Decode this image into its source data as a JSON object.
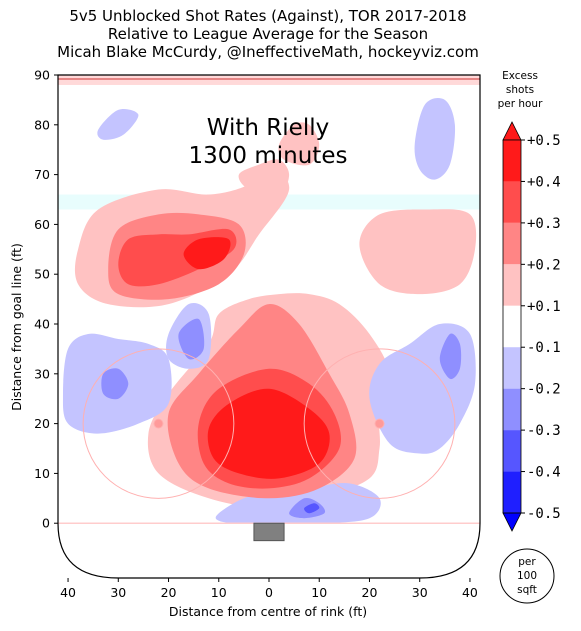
{
  "chart_data": {
    "type": "heatmap",
    "title_lines": [
      "5v5 Unblocked Shot Rates (Against), TOR 2017-2018",
      "Relative to League Average for the Season",
      "Micah Blake McCurdy, @IneffectiveMath, hockeyviz.com"
    ],
    "annotation_lines": [
      "With Rielly",
      "1300 minutes"
    ],
    "xlabel": "Distance from centre of rink (ft)",
    "ylabel": "Distance from goal line (ft)",
    "x_ticks": [
      "40",
      "30",
      "20",
      "10",
      "0",
      "10",
      "20",
      "30",
      "40"
    ],
    "y_ticks": [
      "90",
      "80",
      "70",
      "60",
      "50",
      "40",
      "30",
      "20",
      "10",
      "0"
    ],
    "xlim": [
      -42,
      42
    ],
    "ylim": [
      -11,
      90
    ],
    "colorbar": {
      "title_lines": [
        "Excess",
        "shots",
        "per hour"
      ],
      "tick_labels": [
        "+0.5",
        "+0.4",
        "+0.3",
        "+0.2",
        "+0.1",
        "-0.1",
        "-0.2",
        "-0.3",
        "-0.4",
        "-0.5"
      ],
      "levels": [
        {
          "from": 0.4,
          "to": 0.5,
          "color": "#ff1a1a"
        },
        {
          "from": 0.3,
          "to": 0.4,
          "color": "#ff4d4d"
        },
        {
          "from": 0.2,
          "to": 0.3,
          "color": "#ff8585"
        },
        {
          "from": 0.1,
          "to": 0.2,
          "color": "#ffc2c2"
        },
        {
          "from": -0.1,
          "to": 0.1,
          "color": "#ffffff"
        },
        {
          "from": -0.2,
          "to": -0.1,
          "color": "#c4c4ff"
        },
        {
          "from": -0.3,
          "to": -0.2,
          "color": "#8f8fff"
        },
        {
          "from": -0.4,
          "to": -0.3,
          "color": "#5656ff"
        },
        {
          "from": -0.5,
          "to": -0.4,
          "color": "#1f1fff"
        }
      ],
      "unit_lines": [
        "per",
        "100",
        "sqft"
      ]
    },
    "regions": [
      {
        "name": "slot-hot-core",
        "level": 0.45,
        "points": [
          [
            -12,
            19
          ],
          [
            -8,
            24
          ],
          [
            0,
            27
          ],
          [
            8,
            23
          ],
          [
            12,
            18
          ],
          [
            10,
            12
          ],
          [
            2,
            9
          ],
          [
            -6,
            10
          ],
          [
            -11,
            13
          ]
        ]
      },
      {
        "name": "slot-hot-ring",
        "level": 0.35,
        "points": [
          [
            -14,
            20
          ],
          [
            -10,
            27
          ],
          [
            0,
            31
          ],
          [
            8,
            28
          ],
          [
            13,
            22
          ],
          [
            14,
            15
          ],
          [
            8,
            9
          ],
          [
            0,
            7
          ],
          [
            -8,
            8
          ],
          [
            -13,
            12
          ]
        ]
      },
      {
        "name": "slot-mid",
        "level": 0.25,
        "points": [
          [
            -20,
            22
          ],
          [
            -14,
            30
          ],
          [
            -6,
            39
          ],
          [
            0,
            44
          ],
          [
            6,
            40
          ],
          [
            12,
            30
          ],
          [
            16,
            22
          ],
          [
            17,
            13
          ],
          [
            10,
            7
          ],
          [
            0,
            5
          ],
          [
            -12,
            7
          ],
          [
            -18,
            12
          ]
        ]
      },
      {
        "name": "slot-light",
        "level": 0.15,
        "points": [
          [
            -24,
            18
          ],
          [
            -20,
            26
          ],
          [
            -12,
            36
          ],
          [
            -10,
            42
          ],
          [
            -4,
            45
          ],
          [
            2,
            46
          ],
          [
            8,
            46
          ],
          [
            14,
            44
          ],
          [
            20,
            38
          ],
          [
            24,
            30
          ],
          [
            22,
            22
          ],
          [
            22,
            15
          ],
          [
            20,
            9
          ],
          [
            10,
            5
          ],
          [
            0,
            3
          ],
          [
            -12,
            5
          ],
          [
            -22,
            10
          ]
        ]
      },
      {
        "name": "top-left-light",
        "level": 0.15,
        "points": [
          [
            -38,
            55
          ],
          [
            -34,
            63
          ],
          [
            -22,
            67
          ],
          [
            -12,
            66
          ],
          [
            -4,
            68
          ],
          [
            0,
            72
          ],
          [
            4,
            67
          ],
          [
            -2,
            58
          ],
          [
            -8,
            50
          ],
          [
            -20,
            44
          ],
          [
            -32,
            44
          ],
          [
            -38,
            48
          ]
        ]
      },
      {
        "name": "top-left-mid",
        "level": 0.25,
        "points": [
          [
            -32,
            51
          ],
          [
            -30,
            59
          ],
          [
            -22,
            62
          ],
          [
            -14,
            62
          ],
          [
            -6,
            60
          ],
          [
            -5,
            54
          ],
          [
            -10,
            48
          ],
          [
            -20,
            45
          ],
          [
            -30,
            46
          ]
        ]
      },
      {
        "name": "top-left-hot",
        "level": 0.35,
        "points": [
          [
            -30,
            52
          ],
          [
            -28,
            57
          ],
          [
            -22,
            58
          ],
          [
            -16,
            58
          ],
          [
            -8,
            59
          ],
          [
            -7,
            55
          ],
          [
            -14,
            51
          ],
          [
            -22,
            48
          ],
          [
            -28,
            48
          ]
        ]
      },
      {
        "name": "top-left-core",
        "level": 0.45,
        "points": [
          [
            -17,
            54
          ],
          [
            -14,
            57
          ],
          [
            -8,
            57
          ],
          [
            -9,
            53
          ],
          [
            -14,
            51
          ]
        ]
      },
      {
        "name": "top-right-light",
        "level": 0.15,
        "points": [
          [
            18,
            56
          ],
          [
            22,
            62
          ],
          [
            32,
            63
          ],
          [
            40,
            62
          ],
          [
            41,
            55
          ],
          [
            38,
            48
          ],
          [
            30,
            46
          ],
          [
            22,
            48
          ]
        ]
      },
      {
        "name": "top-center-light",
        "level": 0.15,
        "points": [
          [
            -6,
            70
          ],
          [
            -2,
            72
          ],
          [
            2,
            73
          ],
          [
            4,
            70
          ],
          [
            2,
            66
          ],
          [
            -4,
            67
          ]
        ]
      },
      {
        "name": "rielly-box",
        "level": 0.15,
        "points": [
          [
            2,
            76
          ],
          [
            5,
            80
          ],
          [
            8,
            80
          ],
          [
            10,
            76
          ],
          [
            8,
            72
          ],
          [
            3,
            73
          ]
        ]
      },
      {
        "name": "upper-right-cold",
        "level": 0.15,
        "points": [
          [
            29,
            76
          ],
          [
            31,
            84
          ],
          [
            35,
            85
          ],
          [
            37,
            80
          ],
          [
            36,
            72
          ],
          [
            33,
            69
          ],
          [
            30,
            71
          ]
        ],
        "cold": true
      },
      {
        "name": "upper-left-cold",
        "level": 0.15,
        "points": [
          [
            -34,
            79
          ],
          [
            -30,
            83
          ],
          [
            -26,
            82
          ],
          [
            -29,
            78
          ],
          [
            -33,
            77
          ]
        ],
        "cold": true
      },
      {
        "name": "left-cold-light",
        "level": 0.15,
        "points": [
          [
            -40,
            35
          ],
          [
            -36,
            38
          ],
          [
            -30,
            37
          ],
          [
            -24,
            36
          ],
          [
            -20,
            33
          ],
          [
            -20,
            24
          ],
          [
            -26,
            20
          ],
          [
            -34,
            18
          ],
          [
            -40,
            20
          ],
          [
            -41,
            26
          ]
        ],
        "cold": true
      },
      {
        "name": "left-cold-mid",
        "level": 0.25,
        "points": [
          [
            -33,
            30
          ],
          [
            -30,
            31
          ],
          [
            -28,
            28
          ],
          [
            -30,
            25
          ],
          [
            -33,
            26
          ]
        ],
        "cold": true
      },
      {
        "name": "left-mid-cold",
        "level": 0.15,
        "points": [
          [
            -20,
            38
          ],
          [
            -16,
            44
          ],
          [
            -12,
            42
          ],
          [
            -12,
            33
          ],
          [
            -16,
            31
          ],
          [
            -20,
            33
          ]
        ],
        "cold": true
      },
      {
        "name": "left-mid-cold-2",
        "level": 0.25,
        "points": [
          [
            -18,
            38
          ],
          [
            -14,
            41
          ],
          [
            -13,
            35
          ],
          [
            -16,
            33
          ]
        ],
        "cold": true
      },
      {
        "name": "right-cold-light",
        "level": 0.15,
        "points": [
          [
            20,
            25
          ],
          [
            22,
            32
          ],
          [
            28,
            36
          ],
          [
            34,
            40
          ],
          [
            40,
            38
          ],
          [
            41,
            28
          ],
          [
            38,
            20
          ],
          [
            34,
            15
          ],
          [
            30,
            14
          ],
          [
            24,
            16
          ]
        ],
        "cold": true
      },
      {
        "name": "right-cold-mid",
        "level": 0.25,
        "points": [
          [
            34,
            33
          ],
          [
            36,
            38
          ],
          [
            38,
            36
          ],
          [
            38,
            31
          ],
          [
            36,
            29
          ]
        ],
        "cold": true
      },
      {
        "name": "crease-cold-light",
        "level": 0.15,
        "points": [
          [
            -10,
            2
          ],
          [
            -5,
            5
          ],
          [
            0,
            6
          ],
          [
            8,
            7
          ],
          [
            16,
            8
          ],
          [
            22,
            5
          ],
          [
            20,
            1
          ],
          [
            10,
            0
          ],
          [
            -5,
            0
          ],
          [
            -10,
            0.5
          ]
        ],
        "cold": true
      },
      {
        "name": "crease-cold-mid",
        "level": 0.25,
        "points": [
          [
            4,
            2
          ],
          [
            7,
            5
          ],
          [
            10,
            4
          ],
          [
            11,
            2
          ],
          [
            7,
            1
          ]
        ],
        "cold": true
      },
      {
        "name": "crease-cold-hot",
        "level": 0.35,
        "points": [
          [
            7,
            3
          ],
          [
            9,
            4
          ],
          [
            10,
            3
          ],
          [
            8,
            2
          ]
        ],
        "cold": true
      }
    ]
  }
}
